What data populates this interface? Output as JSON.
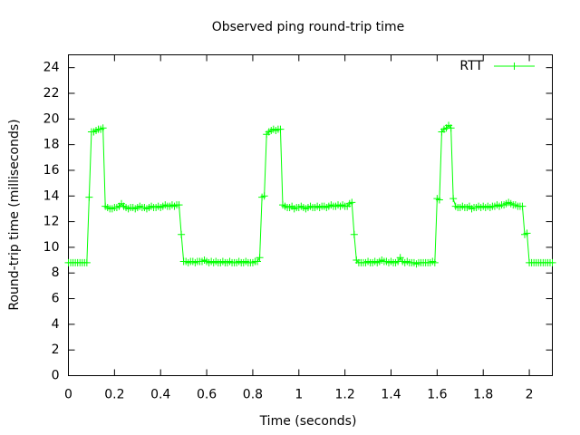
{
  "chart_data": {
    "type": "line",
    "title": "Observed ping round-trip time",
    "x_label": "Time (seconds)",
    "y_label": "Round-trip time (milliseconds)",
    "xlim": [
      0,
      2.1
    ],
    "ylim": [
      0,
      25
    ],
    "xticks": [
      0,
      0.2,
      0.4,
      0.6,
      0.8,
      1,
      1.2,
      1.4,
      1.6,
      1.8,
      2
    ],
    "yticks": [
      0,
      2,
      4,
      6,
      8,
      10,
      12,
      14,
      16,
      18,
      20,
      22,
      24
    ],
    "grid": false,
    "legend": "top-right",
    "x": [
      0,
      0.01,
      0.02,
      0.03,
      0.04,
      0.05,
      0.06,
      0.07,
      0.08,
      0.09,
      0.1,
      0.11,
      0.12,
      0.13,
      0.14,
      0.15,
      0.16,
      0.17,
      0.18,
      0.19,
      0.2,
      0.21,
      0.22,
      0.23,
      0.24,
      0.25,
      0.26,
      0.27,
      0.28,
      0.29,
      0.3,
      0.31,
      0.32,
      0.33,
      0.34,
      0.35,
      0.36,
      0.37,
      0.38,
      0.39,
      0.4,
      0.41,
      0.42,
      0.43,
      0.44,
      0.45,
      0.46,
      0.47,
      0.48,
      0.49,
      0.5,
      0.51,
      0.52,
      0.53,
      0.54,
      0.55,
      0.56,
      0.57,
      0.58,
      0.59,
      0.6,
      0.61,
      0.62,
      0.63,
      0.64,
      0.65,
      0.66,
      0.67,
      0.68,
      0.69,
      0.7,
      0.71,
      0.72,
      0.73,
      0.74,
      0.75,
      0.76,
      0.77,
      0.78,
      0.79,
      0.8,
      0.81,
      0.82,
      0.83,
      0.84,
      0.85,
      0.86,
      0.87,
      0.88,
      0.89,
      0.9,
      0.91,
      0.92,
      0.93,
      0.94,
      0.95,
      0.96,
      0.97,
      0.98,
      0.99,
      1,
      1.01,
      1.02,
      1.03,
      1.04,
      1.05,
      1.06,
      1.07,
      1.08,
      1.09,
      1.1,
      1.11,
      1.12,
      1.13,
      1.14,
      1.15,
      1.16,
      1.17,
      1.18,
      1.19,
      1.2,
      1.21,
      1.22,
      1.23,
      1.24,
      1.25,
      1.26,
      1.27,
      1.28,
      1.29,
      1.3,
      1.31,
      1.32,
      1.33,
      1.34,
      1.35,
      1.36,
      1.37,
      1.38,
      1.39,
      1.4,
      1.41,
      1.42,
      1.43,
      1.44,
      1.45,
      1.46,
      1.47,
      1.48,
      1.49,
      1.5,
      1.51,
      1.52,
      1.53,
      1.54,
      1.55,
      1.56,
      1.57,
      1.58,
      1.59,
      1.6,
      1.61,
      1.62,
      1.63,
      1.64,
      1.65,
      1.66,
      1.67,
      1.68,
      1.69,
      1.7,
      1.71,
      1.72,
      1.73,
      1.74,
      1.75,
      1.76,
      1.77,
      1.78,
      1.79,
      1.8,
      1.81,
      1.82,
      1.83,
      1.84,
      1.85,
      1.86,
      1.87,
      1.88,
      1.89,
      1.9,
      1.91,
      1.92,
      1.93,
      1.94,
      1.95,
      1.96,
      1.97,
      1.98,
      1.99,
      2,
      2.01,
      2.02,
      2.03,
      2.04,
      2.05,
      2.06,
      2.07,
      2.08,
      2.09,
      2.1
    ],
    "series": [
      {
        "name": "RTT",
        "color": "#00ff00",
        "values": [
          8.8,
          8.8,
          8.8,
          8.8,
          8.8,
          8.8,
          8.8,
          8.8,
          8.8,
          13.9,
          19.0,
          19.0,
          19.1,
          19.2,
          19.2,
          19.3,
          13.2,
          13.1,
          13.0,
          13.0,
          13.1,
          13.1,
          13.2,
          13.4,
          13.2,
          13.1,
          13.0,
          13.1,
          13.1,
          13.0,
          13.1,
          13.2,
          13.1,
          13.1,
          13.0,
          13.1,
          13.2,
          13.1,
          13.1,
          13.2,
          13.1,
          13.2,
          13.3,
          13.2,
          13.2,
          13.3,
          13.2,
          13.3,
          13.3,
          11.0,
          8.9,
          8.9,
          8.8,
          8.9,
          8.9,
          8.8,
          8.9,
          8.9,
          8.9,
          9.0,
          8.9,
          8.8,
          8.9,
          8.8,
          8.9,
          8.8,
          8.8,
          8.9,
          8.8,
          8.8,
          8.9,
          8.8,
          8.8,
          8.8,
          8.9,
          8.8,
          8.8,
          8.9,
          8.8,
          8.8,
          8.8,
          8.9,
          8.9,
          9.2,
          13.9,
          14.0,
          18.8,
          19.0,
          19.1,
          19.2,
          19.1,
          19.2,
          19.2,
          13.3,
          13.2,
          13.1,
          13.1,
          13.2,
          13.0,
          13.1,
          13.1,
          13.2,
          13.1,
          13.0,
          13.1,
          13.2,
          13.1,
          13.1,
          13.2,
          13.1,
          13.2,
          13.2,
          13.1,
          13.2,
          13.3,
          13.2,
          13.2,
          13.3,
          13.2,
          13.3,
          13.2,
          13.2,
          13.4,
          13.5,
          11.0,
          9.0,
          8.8,
          8.8,
          8.8,
          8.8,
          8.9,
          8.8,
          8.8,
          8.9,
          8.8,
          8.9,
          9.0,
          8.9,
          8.9,
          8.8,
          8.9,
          8.8,
          8.8,
          8.9,
          9.2,
          8.9,
          8.8,
          8.9,
          8.8,
          8.8,
          8.8,
          8.7,
          8.8,
          8.8,
          8.8,
          8.8,
          8.8,
          8.8,
          8.9,
          8.8,
          13.8,
          13.7,
          19.0,
          19.2,
          19.3,
          19.5,
          19.3,
          13.8,
          13.2,
          13.1,
          13.1,
          13.2,
          13.1,
          13.1,
          13.2,
          13.0,
          13.1,
          13.1,
          13.2,
          13.1,
          13.2,
          13.1,
          13.2,
          13.1,
          13.2,
          13.2,
          13.3,
          13.2,
          13.3,
          13.3,
          13.4,
          13.5,
          13.4,
          13.3,
          13.3,
          13.2,
          13.2,
          13.2,
          11.0,
          11.1,
          8.8,
          8.8,
          8.8,
          8.8,
          8.8,
          8.8,
          8.8,
          8.8,
          8.8,
          8.8,
          8.8
        ]
      }
    ]
  }
}
